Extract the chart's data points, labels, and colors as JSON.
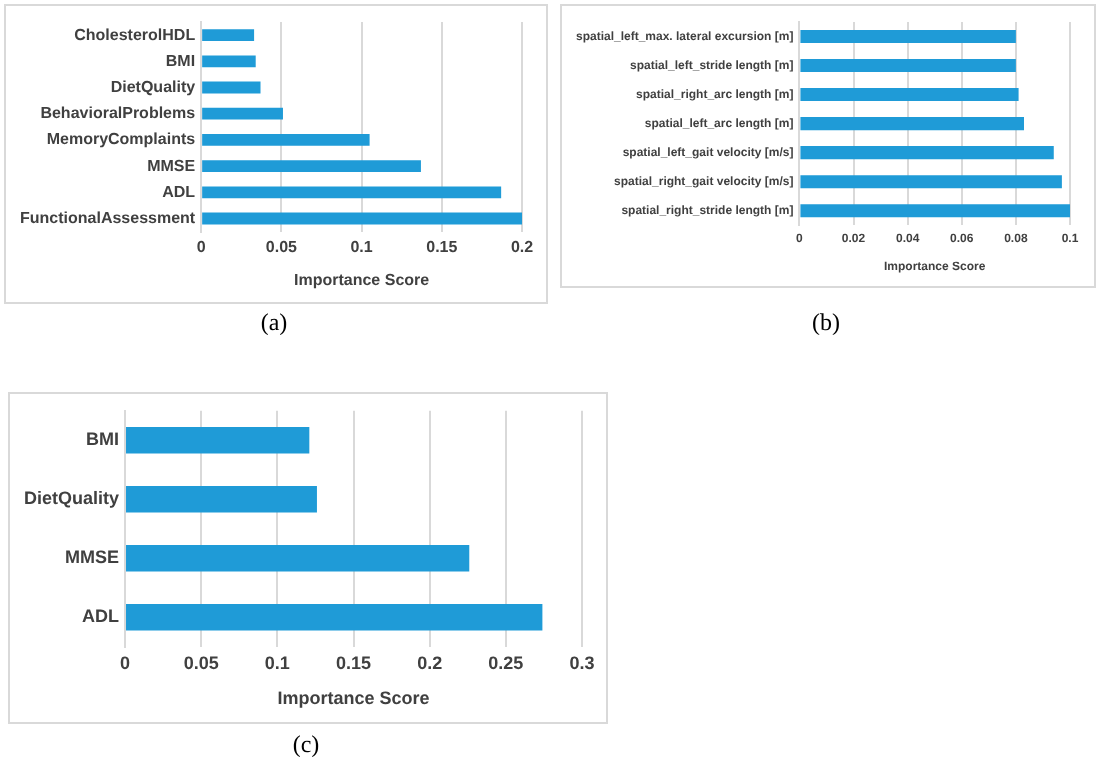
{
  "chart_data": [
    {
      "type": "bar",
      "orientation": "horizontal",
      "categories": [
        "CholesterolHDL",
        "BMI",
        "DietQuality",
        "BehavioralProblems",
        "MemoryComplaints",
        "MMSE",
        "ADL",
        "FunctionalAssessment"
      ],
      "values": [
        0.033,
        0.034,
        0.037,
        0.051,
        0.105,
        0.137,
        0.187,
        0.2
      ],
      "color": "#1f9bd7",
      "xlim": [
        0,
        0.2
      ],
      "xticks": [
        0,
        0.05,
        0.1,
        0.15,
        0.2
      ],
      "xlabel": "Importance Score",
      "grid": "x",
      "legend": false,
      "annotations": [
        "(a)"
      ]
    },
    {
      "type": "bar",
      "orientation": "horizontal",
      "categories": [
        "spatial_left_max. lateral excursion [m]",
        "spatial_left_stride length [m]",
        "spatial_right_arc length [m]",
        "spatial_left_arc length [m]",
        "spatial_left_gait velocity [m/s]",
        "spatial_right_gait velocity [m/s]",
        "spatial_right_stride length [m]"
      ],
      "values": [
        0.08,
        0.08,
        0.081,
        0.083,
        0.094,
        0.097,
        0.1
      ],
      "color": "#1f9bd7",
      "xlim": [
        0,
        0.1
      ],
      "xticks": [
        0,
        0.02,
        0.04,
        0.06,
        0.08,
        0.1
      ],
      "xlabel": "Importance Score",
      "grid": "x",
      "legend": false,
      "annotations": [
        "(b)"
      ]
    },
    {
      "type": "bar",
      "orientation": "horizontal",
      "categories": [
        "BMI",
        "DietQuality",
        "MMSE",
        "ADL"
      ],
      "values": [
        0.121,
        0.126,
        0.226,
        0.274
      ],
      "color": "#1f9bd7",
      "xlim": [
        0,
        0.3
      ],
      "xticks": [
        0,
        0.05,
        0.1,
        0.15,
        0.2,
        0.25,
        0.3
      ],
      "xlabel": "Importance Score",
      "grid": "x",
      "legend": false,
      "annotations": [
        "(c)"
      ]
    }
  ]
}
